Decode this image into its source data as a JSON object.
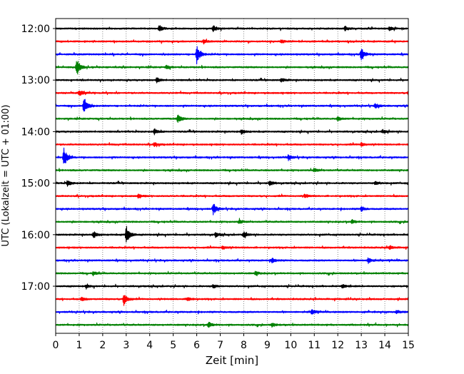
{
  "chart_data": {
    "type": "line",
    "title": "",
    "xlabel": "Zeit  [min]",
    "ylabel": "UTC (Lokalzeit = UTC + 01:00)",
    "xlim": [
      0,
      15
    ],
    "x_ticks": [
      0,
      1,
      2,
      3,
      4,
      5,
      6,
      7,
      8,
      9,
      10,
      11,
      12,
      13,
      14,
      15
    ],
    "y_tick_labels": [
      "12:00",
      "13:00",
      "14:00",
      "15:00",
      "16:00",
      "17:00"
    ],
    "grid": "vertical dotted lines at each minute",
    "trace_colors": [
      "#000000",
      "#ff0000",
      "#0000ff",
      "#008000"
    ],
    "traces": [
      {
        "start": "12:00",
        "events": [
          [
            4.4,
            0.35
          ],
          [
            6.7,
            0.3
          ],
          [
            12.3,
            0.25
          ],
          [
            14.2,
            0.2
          ]
        ]
      },
      {
        "start": "12:15",
        "events": [
          [
            6.3,
            0.2
          ],
          [
            9.6,
            0.15
          ]
        ]
      },
      {
        "start": "12:30",
        "events": [
          [
            6.0,
            1.0
          ],
          [
            13.0,
            0.7
          ]
        ]
      },
      {
        "start": "12:45",
        "events": [
          [
            0.9,
            0.9
          ],
          [
            4.7,
            0.2
          ]
        ]
      },
      {
        "start": "13:00",
        "events": [
          [
            4.3,
            0.25
          ],
          [
            9.6,
            0.2
          ]
        ]
      },
      {
        "start": "13:15",
        "events": [
          [
            1.0,
            0.3
          ],
          [
            15.0,
            0.25
          ]
        ]
      },
      {
        "start": "13:30",
        "events": [
          [
            1.2,
            1.0
          ],
          [
            13.6,
            0.25
          ]
        ]
      },
      {
        "start": "13:45",
        "events": [
          [
            5.2,
            0.45
          ],
          [
            12.0,
            0.2
          ]
        ]
      },
      {
        "start": "14:00",
        "events": [
          [
            4.2,
            0.3
          ],
          [
            7.9,
            0.25
          ],
          [
            13.9,
            0.2
          ]
        ]
      },
      {
        "start": "14:15",
        "events": [
          [
            4.2,
            0.25
          ],
          [
            13.0,
            0.2
          ]
        ]
      },
      {
        "start": "14:30",
        "events": [
          [
            0.35,
            1.0
          ],
          [
            9.9,
            0.3
          ]
        ]
      },
      {
        "start": "14:45",
        "events": [
          [
            11.0,
            0.2
          ]
        ]
      },
      {
        "start": "15:00",
        "events": [
          [
            0.5,
            0.3
          ],
          [
            9.1,
            0.25
          ],
          [
            13.6,
            0.2
          ]
        ]
      },
      {
        "start": "15:15",
        "events": [
          [
            10.6,
            0.2
          ],
          [
            3.5,
            0.2
          ]
        ]
      },
      {
        "start": "15:30",
        "events": [
          [
            6.7,
            0.6
          ],
          [
            13.0,
            0.25
          ]
        ]
      },
      {
        "start": "15:45",
        "events": [
          [
            7.8,
            0.2
          ],
          [
            12.6,
            0.2
          ]
        ]
      },
      {
        "start": "16:00",
        "events": [
          [
            3.0,
            1.0
          ],
          [
            1.6,
            0.35
          ],
          [
            8.0,
            0.3
          ],
          [
            6.8,
            0.25
          ]
        ]
      },
      {
        "start": "16:15",
        "events": [
          [
            7.1,
            0.2
          ],
          [
            14.2,
            0.2
          ]
        ]
      },
      {
        "start": "16:30",
        "events": [
          [
            9.2,
            0.3
          ],
          [
            13.3,
            0.3
          ]
        ]
      },
      {
        "start": "16:45",
        "events": [
          [
            1.6,
            0.2
          ],
          [
            8.5,
            0.2
          ]
        ]
      },
      {
        "start": "17:00",
        "events": [
          [
            12.2,
            0.2
          ],
          [
            6.7,
            0.2
          ],
          [
            1.3,
            0.15
          ]
        ]
      },
      {
        "start": "17:15",
        "events": [
          [
            2.9,
            0.7
          ],
          [
            5.6,
            0.25
          ],
          [
            1.1,
            0.2
          ]
        ]
      },
      {
        "start": "17:30",
        "events": [
          [
            10.9,
            0.25
          ],
          [
            14.5,
            0.2
          ]
        ]
      },
      {
        "start": "17:45",
        "events": [
          [
            6.5,
            0.3
          ],
          [
            9.2,
            0.2
          ]
        ]
      }
    ]
  }
}
